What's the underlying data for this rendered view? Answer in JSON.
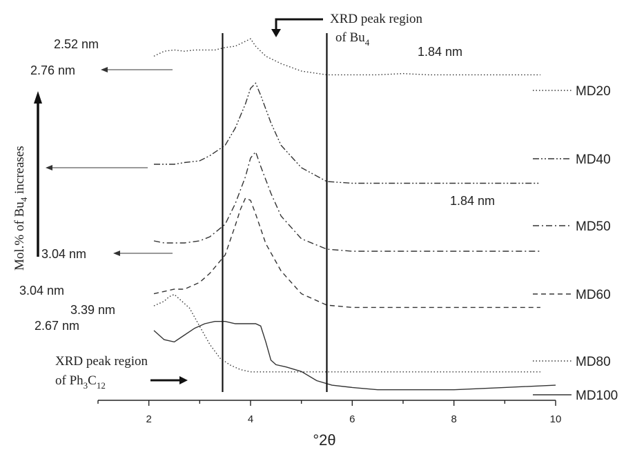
{
  "chart_data": {
    "type": "line",
    "title": "",
    "xlabel": "°2θ",
    "ylabel": "",
    "xlim": [
      1,
      10
    ],
    "x_ticks": [
      "2",
      "4",
      "6",
      "8",
      "10"
    ],
    "y_ticks": [],
    "grid": false,
    "legend": "right-of-traces",
    "series": [
      {
        "name": "MD20",
        "dash": "dotted",
        "x": [
          2.1,
          2.3,
          2.5,
          2.7,
          2.9,
          3.1,
          3.3,
          3.5,
          3.7,
          3.9,
          4.0,
          4.1,
          4.3,
          4.6,
          5.0,
          5.5,
          6.0,
          6.5,
          7.0,
          7.5,
          8.0,
          8.5,
          9.0,
          9.5,
          9.7
        ],
        "y": [
          0.62,
          0.66,
          0.67,
          0.66,
          0.67,
          0.67,
          0.67,
          0.69,
          0.7,
          0.74,
          0.76,
          0.7,
          0.62,
          0.56,
          0.5,
          0.47,
          0.47,
          0.47,
          0.48,
          0.47,
          0.47,
          0.47,
          0.47,
          0.47,
          0.47
        ]
      },
      {
        "name": "MD40",
        "dash": "dash-dot-dot",
        "x": [
          2.1,
          2.3,
          2.5,
          2.7,
          3.0,
          3.2,
          3.5,
          3.7,
          3.9,
          4.0,
          4.1,
          4.2,
          4.4,
          4.6,
          5.0,
          5.5,
          6.0,
          6.5,
          7.0,
          7.5,
          8.0,
          8.5,
          9.0,
          9.5,
          9.7
        ],
        "y": [
          0.22,
          0.22,
          0.22,
          0.23,
          0.24,
          0.27,
          0.33,
          0.43,
          0.57,
          0.66,
          0.69,
          0.62,
          0.46,
          0.33,
          0.2,
          0.12,
          0.11,
          0.11,
          0.11,
          0.11,
          0.11,
          0.11,
          0.11,
          0.11,
          0.11
        ]
      },
      {
        "name": "MD50",
        "dash": "dash-dot",
        "x": [
          2.1,
          2.3,
          2.5,
          2.7,
          3.0,
          3.2,
          3.5,
          3.7,
          3.9,
          4.0,
          4.1,
          4.2,
          4.4,
          4.6,
          5.0,
          5.5,
          6.0,
          6.5,
          7.0,
          7.5,
          8.0,
          8.5,
          9.0,
          9.5,
          9.7
        ],
        "y": [
          0.08,
          0.07,
          0.07,
          0.07,
          0.08,
          0.1,
          0.16,
          0.26,
          0.39,
          0.48,
          0.51,
          0.44,
          0.31,
          0.2,
          0.09,
          0.04,
          0.03,
          0.03,
          0.03,
          0.03,
          0.03,
          0.03,
          0.03,
          0.03,
          0.03
        ]
      },
      {
        "name": "MD60",
        "dash": "dashed",
        "x": [
          2.1,
          2.3,
          2.5,
          2.7,
          3.0,
          3.2,
          3.5,
          3.7,
          3.8,
          3.9,
          4.0,
          4.1,
          4.3,
          4.6,
          5.0,
          5.5,
          6.0,
          6.5,
          7.0,
          7.5,
          8.0,
          8.5,
          9.0,
          9.5,
          9.7
        ],
        "y": [
          0.08,
          0.09,
          0.1,
          0.1,
          0.13,
          0.17,
          0.25,
          0.38,
          0.45,
          0.5,
          0.49,
          0.43,
          0.3,
          0.18,
          0.08,
          0.03,
          0.02,
          0.02,
          0.02,
          0.02,
          0.02,
          0.02,
          0.02,
          0.02,
          0.02
        ]
      },
      {
        "name": "MD80",
        "dash": "dotted",
        "x": [
          2.1,
          2.3,
          2.4,
          2.5,
          2.6,
          2.8,
          3.0,
          3.2,
          3.4,
          3.6,
          3.8,
          4.0,
          4.2,
          4.4,
          4.6,
          5.0,
          5.5,
          6.0,
          6.5,
          7.0,
          7.5,
          8.0,
          8.5,
          9.0,
          9.7
        ],
        "y": [
          0.33,
          0.35,
          0.37,
          0.38,
          0.36,
          0.32,
          0.24,
          0.16,
          0.1,
          0.07,
          0.05,
          0.04,
          0.04,
          0.04,
          0.04,
          0.04,
          0.04,
          0.04,
          0.04,
          0.04,
          0.04,
          0.04,
          0.04,
          0.04,
          0.04
        ]
      },
      {
        "name": "MD100",
        "dash": "solid",
        "x": [
          2.1,
          2.3,
          2.5,
          2.7,
          2.9,
          3.1,
          3.3,
          3.5,
          3.7,
          3.9,
          4.1,
          4.2,
          4.3,
          4.4,
          4.5,
          4.7,
          5.0,
          5.3,
          5.6,
          6.0,
          6.5,
          7.0,
          8.0,
          9.0,
          10.0
        ],
        "y": [
          0.27,
          0.23,
          0.22,
          0.25,
          0.28,
          0.3,
          0.31,
          0.31,
          0.3,
          0.3,
          0.3,
          0.29,
          0.22,
          0.14,
          0.12,
          0.11,
          0.09,
          0.05,
          0.03,
          0.02,
          0.01,
          0.01,
          0.01,
          0.02,
          0.03
        ]
      }
    ],
    "vertical_lines": [
      3.45,
      5.5
    ],
    "annotations": {
      "nm_2_52": "2.52 nm",
      "nm_2_76": "2.76 nm",
      "nm_1_84_top": "1.84 nm",
      "nm_1_84_mid": "1.84 nm",
      "nm_3_04_a": "3.04 nm",
      "nm_3_04_b": "3.04 nm",
      "nm_3_39": "3.39 nm",
      "nm_2_67": "2.67  nm",
      "bu4_region_line1": "XRD peak region",
      "bu4_region_line2": "of Bu",
      "bu4_region_sub": "4",
      "ph_region_line1": "XRD peak region",
      "ph_region_line2a": "of Ph",
      "ph_region_sub1": "3",
      "ph_region_line2b": "C",
      "ph_region_sub2": "12",
      "side_label_a": "Mol.% of Bu",
      "side_label_sub": "4",
      "side_label_b": " increases"
    }
  }
}
